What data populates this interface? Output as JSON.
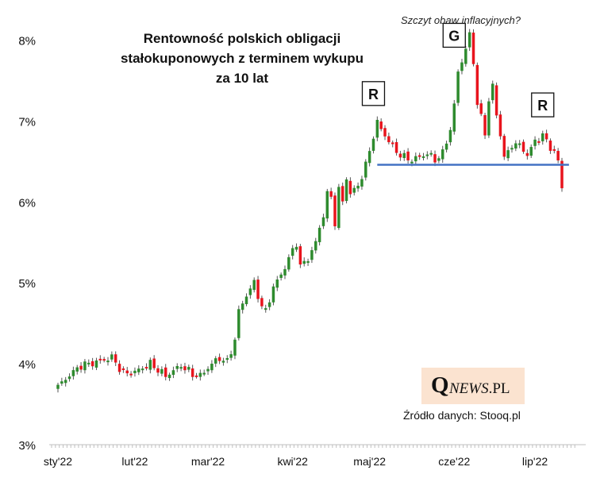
{
  "title_lines": [
    "Rentowność polskich obligacji",
    "stałokuponowych  z terminem wykupu",
    "za 10 lat"
  ],
  "annotation": "Szczyt obaw inflacyjnych?",
  "logo": {
    "q": "Q",
    "news": "NEWS",
    "pl": ".PL"
  },
  "source": "Źródło danych: Stooq.pl",
  "colors": {
    "up": "#2e8b2e",
    "down": "#e8141d",
    "support": "#4472c4",
    "axis": "#bfbfbf"
  },
  "chart_data": {
    "type": "candlestick",
    "title": "Rentowność polskich obligacji stałokuponowych z terminem wykupu za 10 lat",
    "ylim": [
      3,
      8.3
    ],
    "y_ticks": [
      3,
      4,
      5,
      6,
      7,
      8
    ],
    "y_tick_labels": [
      "3%",
      "4%",
      "5%",
      "6%",
      "7%",
      "8%"
    ],
    "x_tick_labels": [
      "sty'22",
      "lut'22",
      "mar'22",
      "kwi'22",
      "maj'22",
      "cze'22",
      "lip'22"
    ],
    "n_sessions": 132,
    "x_tick_sessions": [
      0,
      20,
      39,
      61,
      81,
      103,
      124
    ],
    "grid": false,
    "support_line": {
      "value": 6.46,
      "from_session": 83,
      "to_session": 132
    },
    "markers": [
      {
        "label": "R",
        "session": 82,
        "value": 7.34
      },
      {
        "label": "G",
        "session": 103,
        "value": 8.06
      },
      {
        "label": "R",
        "session": 126,
        "value": 7.2
      }
    ],
    "waypoints": [
      [
        0,
        3.72
      ],
      [
        3,
        3.86
      ],
      [
        6,
        3.98
      ],
      [
        10,
        4.02
      ],
      [
        14,
        4.08
      ],
      [
        17,
        3.88
      ],
      [
        20,
        3.9
      ],
      [
        24,
        4.0
      ],
      [
        28,
        3.85
      ],
      [
        32,
        3.98
      ],
      [
        35,
        3.87
      ],
      [
        37,
        3.85
      ],
      [
        40,
        4.0
      ],
      [
        42,
        4.07
      ],
      [
        44,
        4.02
      ],
      [
        46,
        4.3
      ],
      [
        47,
        4.65
      ],
      [
        49,
        4.85
      ],
      [
        51,
        5.0
      ],
      [
        53,
        4.7
      ],
      [
        54,
        4.65
      ],
      [
        56,
        4.95
      ],
      [
        58,
        5.1
      ],
      [
        60,
        5.3
      ],
      [
        62,
        5.5
      ],
      [
        63,
        5.2
      ],
      [
        65,
        5.3
      ],
      [
        67,
        5.5
      ],
      [
        69,
        5.85
      ],
      [
        70,
        6.1
      ],
      [
        71,
        6.05
      ],
      [
        72,
        5.75
      ],
      [
        73,
        6.15
      ],
      [
        74,
        6.0
      ],
      [
        75,
        6.3
      ],
      [
        76,
        6.1
      ],
      [
        78,
        6.2
      ],
      [
        80,
        6.45
      ],
      [
        82,
        6.82
      ],
      [
        83,
        6.98
      ],
      [
        84,
        6.9
      ],
      [
        86,
        6.75
      ],
      [
        88,
        6.62
      ],
      [
        90,
        6.55
      ],
      [
        92,
        6.52
      ],
      [
        94,
        6.56
      ],
      [
        96,
        6.6
      ],
      [
        98,
        6.52
      ],
      [
        100,
        6.6
      ],
      [
        102,
        6.9
      ],
      [
        103,
        7.2
      ],
      [
        104,
        7.6
      ],
      [
        105,
        7.75
      ],
      [
        106,
        7.9
      ],
      [
        107,
        8.05
      ],
      [
        108,
        7.75
      ],
      [
        109,
        7.2
      ],
      [
        110,
        7.05
      ],
      [
        111,
        6.85
      ],
      [
        112,
        7.25
      ],
      [
        113,
        7.45
      ],
      [
        114,
        7.05
      ],
      [
        115,
        6.85
      ],
      [
        116,
        6.55
      ],
      [
        117,
        6.6
      ],
      [
        118,
        6.72
      ],
      [
        120,
        6.7
      ],
      [
        122,
        6.58
      ],
      [
        124,
        6.75
      ],
      [
        126,
        6.82
      ],
      [
        128,
        6.68
      ],
      [
        129,
        6.62
      ],
      [
        130,
        6.5
      ],
      [
        131,
        6.18
      ]
    ]
  }
}
